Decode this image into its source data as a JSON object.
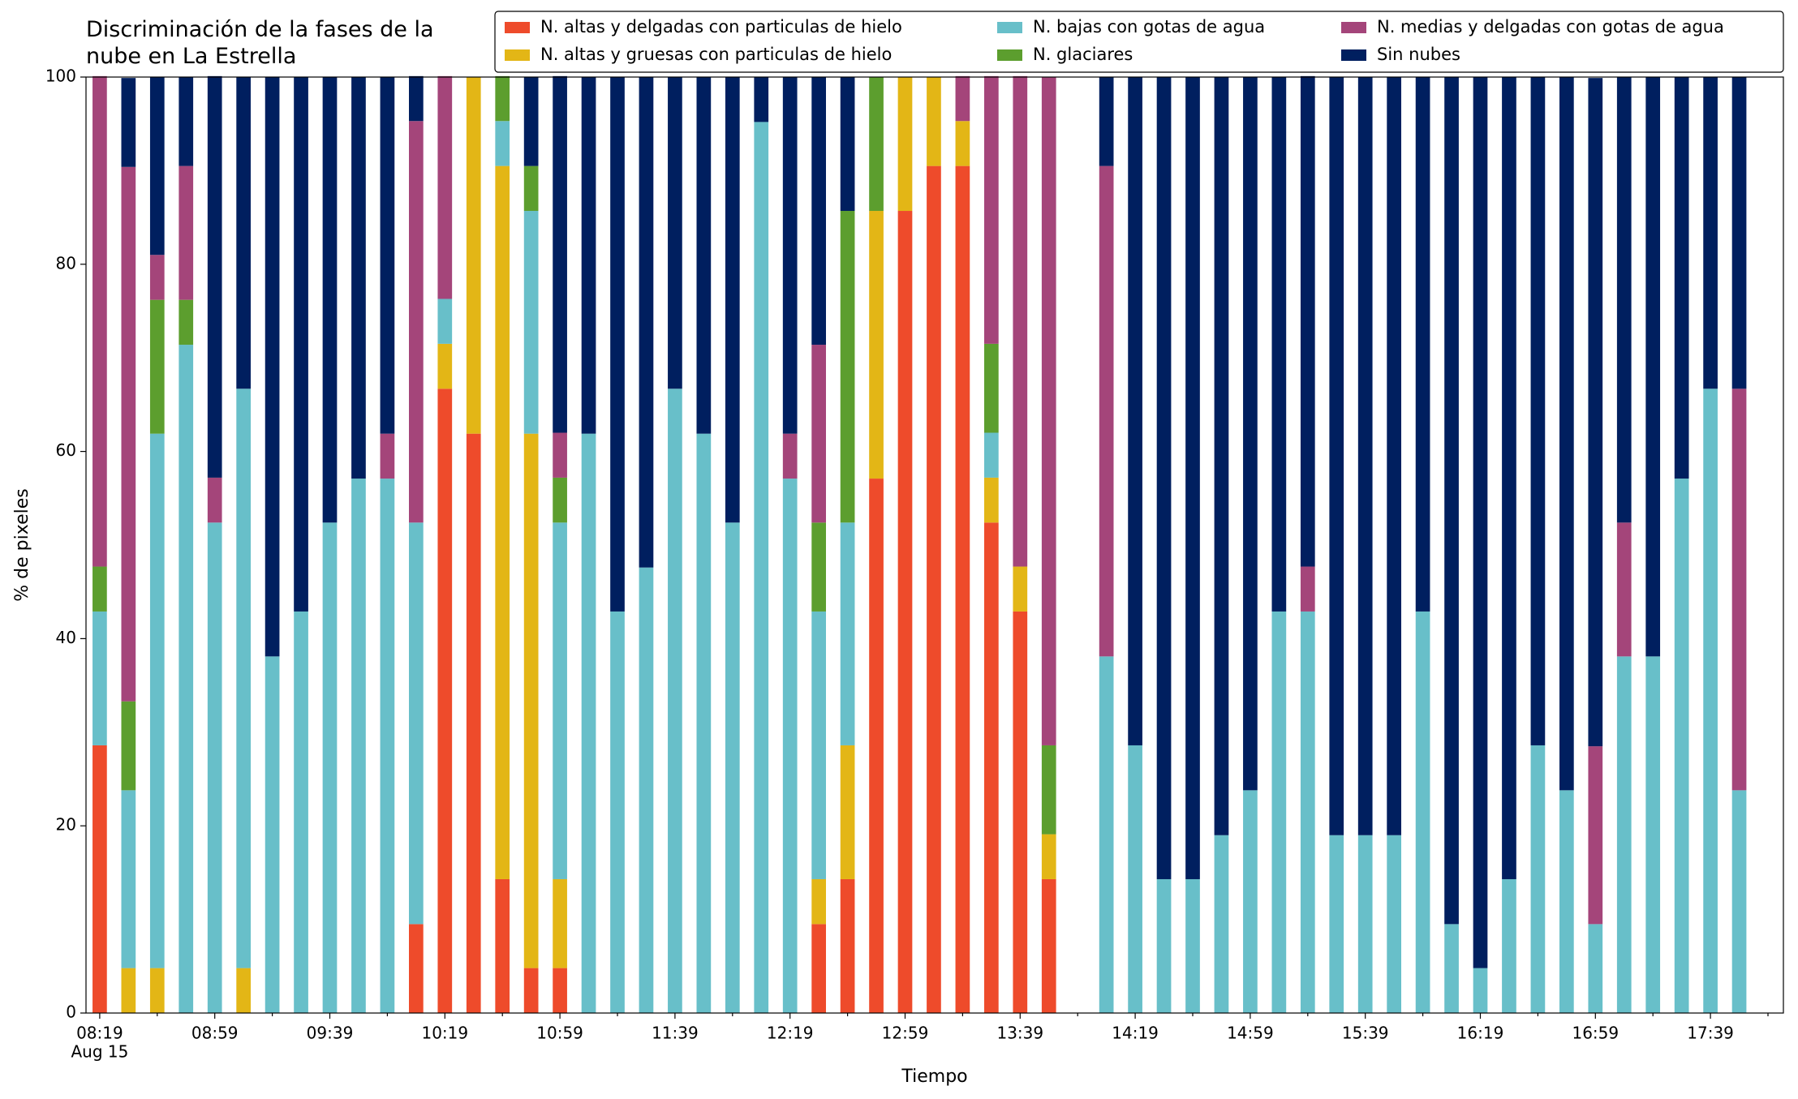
{
  "chart_data": {
    "type": "stacked_bar",
    "title": "Discriminación de la fases de la nube en La Estrella",
    "x_label": "Tiempo",
    "y_label": "% de pixeles",
    "x_date_label": "Aug 15",
    "categories": [
      "08:19",
      null,
      null,
      null,
      "08:59",
      null,
      null,
      null,
      "09:39",
      null,
      null,
      null,
      "10:19",
      null,
      null,
      null,
      "10:59",
      null,
      null,
      null,
      "11:39",
      null,
      null,
      null,
      "12:19",
      null,
      null,
      null,
      "12:59",
      null,
      null,
      null,
      "13:39",
      null,
      null,
      null,
      "14:19",
      null,
      null,
      null,
      "14:59",
      null,
      null,
      null,
      "15:39",
      null,
      null,
      null,
      "16:19",
      null,
      null,
      null,
      "16:59",
      null,
      null,
      null,
      "17:39",
      null
    ],
    "ylim": [
      0,
      100
    ],
    "yticks": [
      0,
      20,
      40,
      60,
      80,
      100
    ],
    "grid": false,
    "legend": "top",
    "series": [
      {
        "name": "N. altas y delgadas con particulas de hielo",
        "color": "#ee4b2b",
        "values": [
          28.6,
          0,
          0,
          0,
          0,
          0,
          0,
          0,
          0,
          0,
          0,
          9.5,
          66.7,
          61.9,
          14.3,
          4.8,
          4.8,
          0,
          0,
          0,
          0,
          0,
          0,
          0,
          0,
          9.5,
          14.3,
          57.1,
          85.7,
          90.5,
          90.5,
          52.4,
          42.9,
          14.3,
          null,
          0,
          0,
          0,
          0,
          0,
          0,
          0,
          0,
          0,
          0,
          0,
          0,
          0,
          0,
          0,
          0,
          0,
          0,
          0,
          0,
          0,
          0,
          0
        ]
      },
      {
        "name": "N. altas y gruesas con particulas de hielo",
        "color": "#e3b616",
        "values": [
          0,
          4.8,
          4.8,
          0,
          0,
          4.8,
          0,
          0,
          0,
          0,
          0,
          0,
          4.8,
          38.1,
          76.2,
          57.1,
          9.5,
          0,
          0,
          0,
          0,
          0,
          0,
          0,
          0,
          4.8,
          14.3,
          28.6,
          14.3,
          9.5,
          4.8,
          4.8,
          4.8,
          4.8,
          null,
          0,
          0,
          0,
          0,
          0,
          0,
          0,
          0,
          0,
          0,
          0,
          0,
          0,
          0,
          0,
          0,
          0,
          0,
          0,
          0,
          0,
          0,
          0
        ]
      },
      {
        "name": "N. bajas con gotas de agua",
        "color": "#68bfc9",
        "values": [
          14.3,
          19.0,
          57.1,
          71.4,
          52.4,
          61.9,
          38.1,
          42.9,
          52.4,
          57.1,
          57.1,
          42.9,
          4.8,
          0,
          4.8,
          23.8,
          38.1,
          61.9,
          42.9,
          47.6,
          66.7,
          61.9,
          52.4,
          95.2,
          57.1,
          28.6,
          23.8,
          0,
          0,
          0,
          0,
          4.8,
          0,
          0,
          null,
          38.1,
          28.6,
          14.3,
          14.3,
          19.0,
          23.8,
          42.9,
          42.9,
          19.0,
          19.0,
          19.0,
          42.9,
          9.5,
          4.8,
          14.3,
          28.6,
          23.8,
          9.5,
          38.1,
          38.1,
          57.1,
          66.7,
          23.8
        ]
      },
      {
        "name": "N. glaciares",
        "color": "#5c9e2e",
        "values": [
          4.8,
          9.5,
          14.3,
          4.8,
          0,
          0,
          0,
          0,
          0,
          0,
          0,
          0,
          0,
          0,
          4.8,
          4.8,
          4.8,
          0,
          0,
          0,
          0,
          0,
          0,
          0,
          0,
          9.5,
          33.3,
          14.3,
          0,
          0,
          0,
          9.5,
          0,
          9.5,
          null,
          0,
          0,
          0,
          0,
          0,
          0,
          0,
          0,
          0,
          0,
          0,
          0,
          0,
          0,
          0,
          0,
          0,
          0,
          0,
          0,
          0,
          0,
          0
        ]
      },
      {
        "name": "N. medias y delgadas con gotas de agua",
        "color": "#a4457a",
        "values": [
          52.4,
          57.1,
          4.8,
          14.3,
          4.8,
          0,
          0,
          0,
          0,
          0,
          4.8,
          42.9,
          23.8,
          0,
          0,
          0,
          4.8,
          0,
          0,
          0,
          0,
          0,
          0,
          0,
          4.8,
          19.0,
          0,
          0,
          0,
          0,
          4.8,
          28.6,
          52.4,
          71.4,
          null,
          52.4,
          0,
          0,
          0,
          0,
          0,
          0,
          4.8,
          0,
          0,
          0,
          0,
          0,
          0,
          0,
          0,
          0,
          19.0,
          14.3,
          0,
          0,
          0,
          42.9
        ]
      },
      {
        "name": "Sin nubes",
        "color": "#001f5f",
        "values": [
          0,
          9.5,
          19.0,
          9.5,
          42.9,
          33.3,
          61.9,
          57.1,
          47.6,
          42.9,
          38.1,
          4.8,
          0,
          0,
          0,
          9.5,
          38.1,
          38.1,
          57.1,
          52.4,
          33.3,
          38.1,
          47.6,
          4.8,
          38.1,
          28.6,
          14.3,
          0,
          0,
          0,
          0,
          0,
          0,
          0,
          null,
          9.5,
          71.4,
          85.7,
          85.7,
          81.0,
          76.2,
          57.1,
          52.4,
          81.0,
          81.0,
          81.0,
          57.1,
          90.5,
          95.2,
          85.7,
          71.4,
          76.2,
          71.4,
          47.6,
          61.9,
          42.9,
          33.3,
          33.3
        ]
      }
    ]
  }
}
